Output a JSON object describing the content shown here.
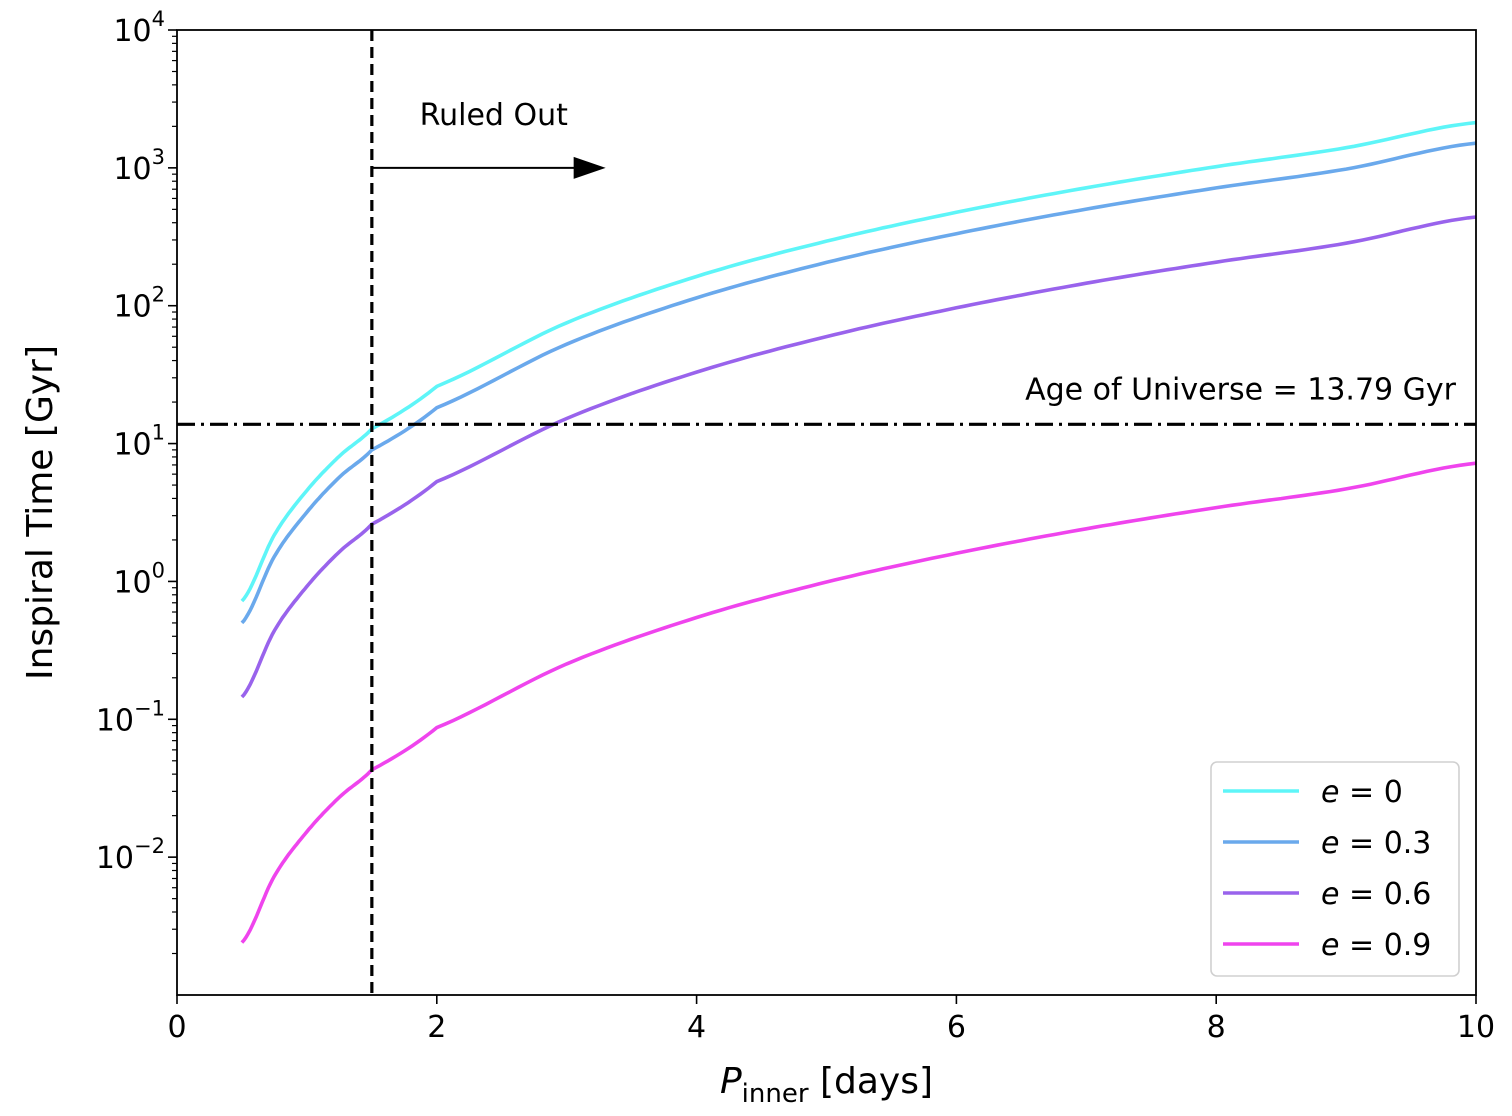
{
  "chart_data": {
    "type": "line",
    "xlabel_main": "P",
    "xlabel_sub": "inner",
    "xlabel_unit": " [days]",
    "ylabel": "Inspiral Time [Gyr]",
    "xlim": [
      0,
      10
    ],
    "ylim": [
      0.001,
      10000
    ],
    "yscale": "log",
    "x_ticks": [
      {
        "value": 0,
        "label": "0"
      },
      {
        "value": 2,
        "label": "2"
      },
      {
        "value": 4,
        "label": "4"
      },
      {
        "value": 6,
        "label": "6"
      },
      {
        "value": 8,
        "label": "8"
      },
      {
        "value": 10,
        "label": "10"
      }
    ],
    "y_ticks": [
      {
        "value": 0.01,
        "base": "10",
        "exp": "−2"
      },
      {
        "value": 0.1,
        "base": "10",
        "exp": "−1"
      },
      {
        "value": 1,
        "base": "10",
        "exp": "0"
      },
      {
        "value": 10,
        "base": "10",
        "exp": "1"
      },
      {
        "value": 100,
        "base": "10",
        "exp": "2"
      },
      {
        "value": 1000,
        "base": "10",
        "exp": "3"
      },
      {
        "value": 10000,
        "base": "10",
        "exp": "4"
      }
    ],
    "x": [
      0.5,
      0.75,
      1.0,
      1.25,
      1.5,
      2.0,
      3.0,
      4.0,
      5.0,
      6.0,
      7.0,
      8.0,
      9.0,
      10.0
    ],
    "series": [
      {
        "label_var": "e",
        "label_value": "0",
        "color": "#5ef5f8",
        "values": [
          0.72,
          2.18,
          4.57,
          8.1,
          12.8,
          26.0,
          75.2,
          163,
          294,
          476,
          717,
          1020,
          1400,
          2130
        ]
      },
      {
        "label_var": "e",
        "label_value": "0.3",
        "color": "#6aa9ec",
        "values": [
          0.5,
          1.52,
          3.18,
          5.7,
          9.0,
          18.2,
          52.6,
          114,
          206,
          333,
          502,
          715,
          980,
          1510
        ]
      },
      {
        "label_var": "e",
        "label_value": "0.6",
        "color": "#9963ec",
        "values": [
          0.145,
          0.44,
          0.92,
          1.64,
          2.6,
          5.3,
          15.2,
          33.0,
          59.7,
          96.5,
          145.6,
          207,
          284,
          440
        ]
      },
      {
        "label_var": "e",
        "label_value": "0.9",
        "color": "#ef44ed",
        "values": [
          0.0024,
          0.0073,
          0.0153,
          0.0272,
          0.043,
          0.087,
          0.252,
          0.547,
          0.99,
          1.6,
          2.41,
          3.43,
          4.69,
          7.2
        ]
      }
    ],
    "legend_position": "lower-right",
    "vline": {
      "x": 1.5,
      "style": "dashed"
    },
    "hline": {
      "y": 13.79,
      "style": "dash-dot",
      "label": "Age of Universe = 13.79 Gyr"
    },
    "arrow": {
      "label": "Ruled Out",
      "x_start": 1.5,
      "x_end": 3.3,
      "y": 1000
    }
  }
}
